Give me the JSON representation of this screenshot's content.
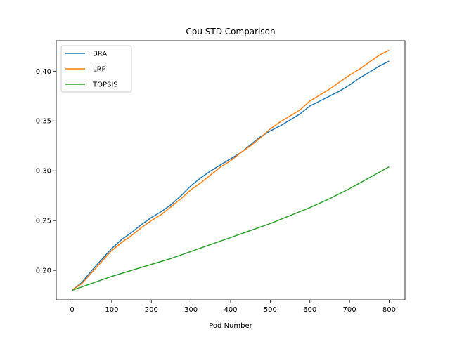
{
  "chart_data": {
    "type": "line",
    "title": "Cpu STD Comparison",
    "xlabel": "Pod Number",
    "ylabel": "",
    "xlim": [
      -40,
      840
    ],
    "ylim": [
      0.1705,
      0.4305
    ],
    "xticks": [
      0,
      100,
      200,
      300,
      400,
      500,
      600,
      700,
      800
    ],
    "yticks": [
      0.2,
      0.25,
      0.3,
      0.35,
      0.4
    ],
    "ytick_labels": [
      "0.20",
      "0.25",
      "0.30",
      "0.35",
      "0.40"
    ],
    "grid": false,
    "legend_position": "upper-left",
    "series": [
      {
        "name": "BRA",
        "color": "#1f77b4",
        "x": [
          0,
          25,
          50,
          75,
          100,
          125,
          150,
          175,
          200,
          225,
          250,
          275,
          300,
          325,
          350,
          375,
          400,
          425,
          450,
          475,
          500,
          525,
          550,
          575,
          600,
          625,
          650,
          675,
          700,
          725,
          750,
          775,
          800
        ],
        "y": [
          0.18,
          0.188,
          0.2,
          0.211,
          0.222,
          0.231,
          0.238,
          0.246,
          0.253,
          0.259,
          0.266,
          0.275,
          0.285,
          0.293,
          0.3,
          0.306,
          0.312,
          0.318,
          0.326,
          0.334,
          0.34,
          0.345,
          0.351,
          0.357,
          0.365,
          0.37,
          0.375,
          0.38,
          0.386,
          0.393,
          0.399,
          0.405,
          0.41
        ]
      },
      {
        "name": "LRP",
        "color": "#ff7f0e",
        "x": [
          0,
          25,
          50,
          75,
          100,
          125,
          150,
          175,
          200,
          225,
          250,
          275,
          300,
          325,
          350,
          375,
          400,
          425,
          450,
          475,
          500,
          525,
          550,
          575,
          600,
          625,
          650,
          675,
          700,
          725,
          750,
          775,
          800
        ],
        "y": [
          0.18,
          0.187,
          0.198,
          0.209,
          0.22,
          0.228,
          0.235,
          0.243,
          0.25,
          0.256,
          0.264,
          0.272,
          0.281,
          0.288,
          0.296,
          0.304,
          0.31,
          0.318,
          0.325,
          0.333,
          0.342,
          0.349,
          0.355,
          0.361,
          0.37,
          0.376,
          0.382,
          0.389,
          0.396,
          0.402,
          0.409,
          0.416,
          0.421
        ]
      },
      {
        "name": "TOPSIS",
        "color": "#2ca02c",
        "x": [
          0,
          50,
          100,
          150,
          200,
          250,
          300,
          350,
          400,
          450,
          500,
          550,
          600,
          650,
          700,
          750,
          800
        ],
        "y": [
          0.18,
          0.187,
          0.194,
          0.2,
          0.206,
          0.212,
          0.219,
          0.226,
          0.233,
          0.24,
          0.247,
          0.255,
          0.263,
          0.272,
          0.282,
          0.293,
          0.304
        ]
      }
    ]
  }
}
